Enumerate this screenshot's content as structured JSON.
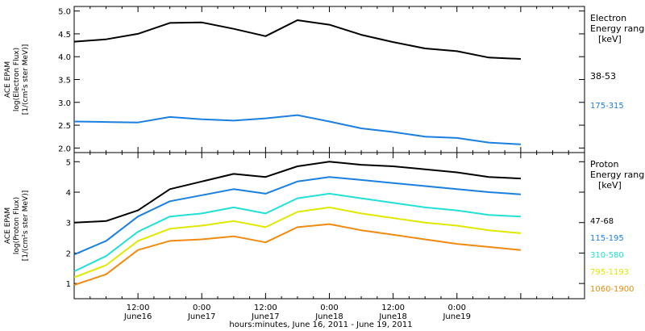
{
  "chart_data": [
    {
      "type": "line",
      "panel": "top",
      "ylabel_lines": [
        "ACE EPAM",
        "log(Electron Flux)",
        "[1/(cm²s ster MeV)]"
      ],
      "ylim": [
        1.9,
        5.1
      ],
      "yticks": [
        2.0,
        2.5,
        3.0,
        3.5,
        4.0,
        4.5,
        5.0
      ],
      "ytick_labels": [
        "2.0",
        "2.5",
        "3.0",
        "3.5",
        "4.0",
        "4.5",
        "5.0"
      ],
      "legend_title_lines": [
        "Electron",
        "Energy ranges",
        "[keV]"
      ],
      "x_hours": [
        0,
        6,
        12,
        18,
        24,
        30,
        36,
        42,
        48,
        54,
        60,
        66,
        72,
        78,
        84
      ],
      "series": [
        {
          "name": "38-53",
          "color": "#000000",
          "values": [
            4.33,
            4.38,
            4.5,
            4.74,
            4.75,
            4.61,
            4.45,
            4.8,
            4.7,
            4.48,
            4.32,
            4.18,
            4.12,
            3.98,
            3.95
          ]
        },
        {
          "name": "175-315",
          "color": "#1a7fe0",
          "values": [
            2.58,
            2.57,
            2.56,
            2.68,
            2.63,
            2.6,
            2.65,
            2.72,
            2.58,
            2.43,
            2.35,
            2.25,
            2.22,
            2.12,
            2.08
          ]
        }
      ]
    },
    {
      "type": "line",
      "panel": "bottom",
      "ylabel_lines": [
        "ACE EPAM",
        "log(Proton Flux)",
        "[1/(cm²s ster MeV)]"
      ],
      "ylim": [
        0.5,
        5.3
      ],
      "yticks": [
        1,
        2,
        3,
        4,
        5
      ],
      "ytick_labels": [
        "1",
        "2",
        "3",
        "4",
        "5"
      ],
      "legend_title_lines": [
        "Proton",
        "Energy ranges",
        "[keV]"
      ],
      "x_hours": [
        0,
        6,
        12,
        18,
        24,
        30,
        36,
        42,
        48,
        54,
        60,
        66,
        72,
        78,
        84
      ],
      "series": [
        {
          "name": "47-68",
          "color": "#000000",
          "values": [
            3.0,
            3.05,
            3.4,
            4.1,
            4.35,
            4.6,
            4.5,
            4.85,
            5.0,
            4.9,
            4.85,
            4.75,
            4.65,
            4.5,
            4.45
          ]
        },
        {
          "name": "115-195",
          "color": "#1a7fe0",
          "values": [
            1.95,
            2.4,
            3.2,
            3.7,
            3.9,
            4.1,
            3.95,
            4.35,
            4.5,
            4.4,
            4.3,
            4.2,
            4.1,
            4.0,
            3.93
          ]
        },
        {
          "name": "310-580",
          "color": "#22e0d6",
          "values": [
            1.4,
            1.9,
            2.7,
            3.2,
            3.3,
            3.5,
            3.3,
            3.8,
            3.95,
            3.8,
            3.65,
            3.5,
            3.4,
            3.25,
            3.2
          ]
        },
        {
          "name": "795-1193",
          "color": "#e0e800",
          "values": [
            1.2,
            1.6,
            2.4,
            2.8,
            2.9,
            3.05,
            2.85,
            3.35,
            3.5,
            3.3,
            3.15,
            3.0,
            2.9,
            2.75,
            2.65
          ]
        },
        {
          "name": "1060-1900",
          "color": "#f08a10",
          "values": [
            0.95,
            1.3,
            2.1,
            2.4,
            2.45,
            2.55,
            2.35,
            2.85,
            2.95,
            2.75,
            2.6,
            2.45,
            2.3,
            2.2,
            2.1
          ]
        }
      ]
    }
  ],
  "x_axis": {
    "xlim_hours": [
      0,
      96
    ],
    "major_hours": [
      12,
      24,
      36,
      48,
      60,
      72
    ],
    "tick_labels": [
      "12:00",
      "0:00",
      "12:00",
      "0:00",
      "12:00",
      "0:00"
    ],
    "day_labels": [
      "June16",
      "June17",
      "June17",
      "June18",
      "June18",
      "June19"
    ],
    "title": "hours:minutes, June 16, 2011 - June 19, 2011"
  }
}
